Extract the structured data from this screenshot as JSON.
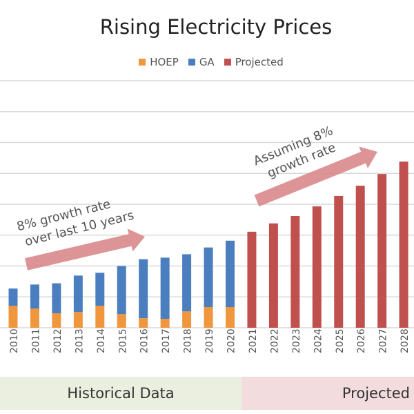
{
  "chart_data": {
    "type": "bar",
    "stacked": true,
    "title": "Rising Electricity Prices",
    "xlabel": "",
    "ylabel": "",
    "ylim": [
      0,
      8
    ],
    "grid": true,
    "legend_placement": "top",
    "categories": [
      "2010",
      "2011",
      "2012",
      "2013",
      "2014",
      "2015",
      "2016",
      "2017",
      "2018",
      "2019",
      "2020",
      "2021",
      "2022",
      "2023",
      "2024",
      "2025",
      "2026",
      "2027",
      "2028"
    ],
    "series": [
      {
        "name": "HOEP",
        "color": "#f0963c",
        "values": [
          0.71,
          0.62,
          0.47,
          0.51,
          0.71,
          0.44,
          0.31,
          0.29,
          0.53,
          0.67,
          0.67,
          null,
          null,
          null,
          null,
          null,
          null,
          null,
          null
        ]
      },
      {
        "name": "GA",
        "color": "#4a7ebf",
        "values": [
          0.56,
          0.78,
          0.97,
          1.18,
          1.07,
          1.56,
          1.91,
          1.98,
          1.85,
          1.93,
          2.15,
          null,
          null,
          null,
          null,
          null,
          null,
          null,
          null
        ]
      },
      {
        "name": "Projected",
        "color": "#c0504d",
        "values": [
          null,
          null,
          null,
          null,
          null,
          null,
          null,
          null,
          null,
          null,
          null,
          3.11,
          3.38,
          3.62,
          3.93,
          4.27,
          4.6,
          4.98,
          5.38
        ]
      }
    ],
    "annotations": {
      "historical": [
        "8% growth rate",
        "over last 10 years"
      ],
      "projected": [
        "Assuming 8%",
        "growth rate"
      ],
      "arrow_color": "#d9888c"
    },
    "bands": {
      "historical": {
        "label": "Historical Data",
        "color": "#eaefdf"
      },
      "projected": {
        "label": "Projected",
        "color": "#f3dcdd"
      }
    }
  }
}
